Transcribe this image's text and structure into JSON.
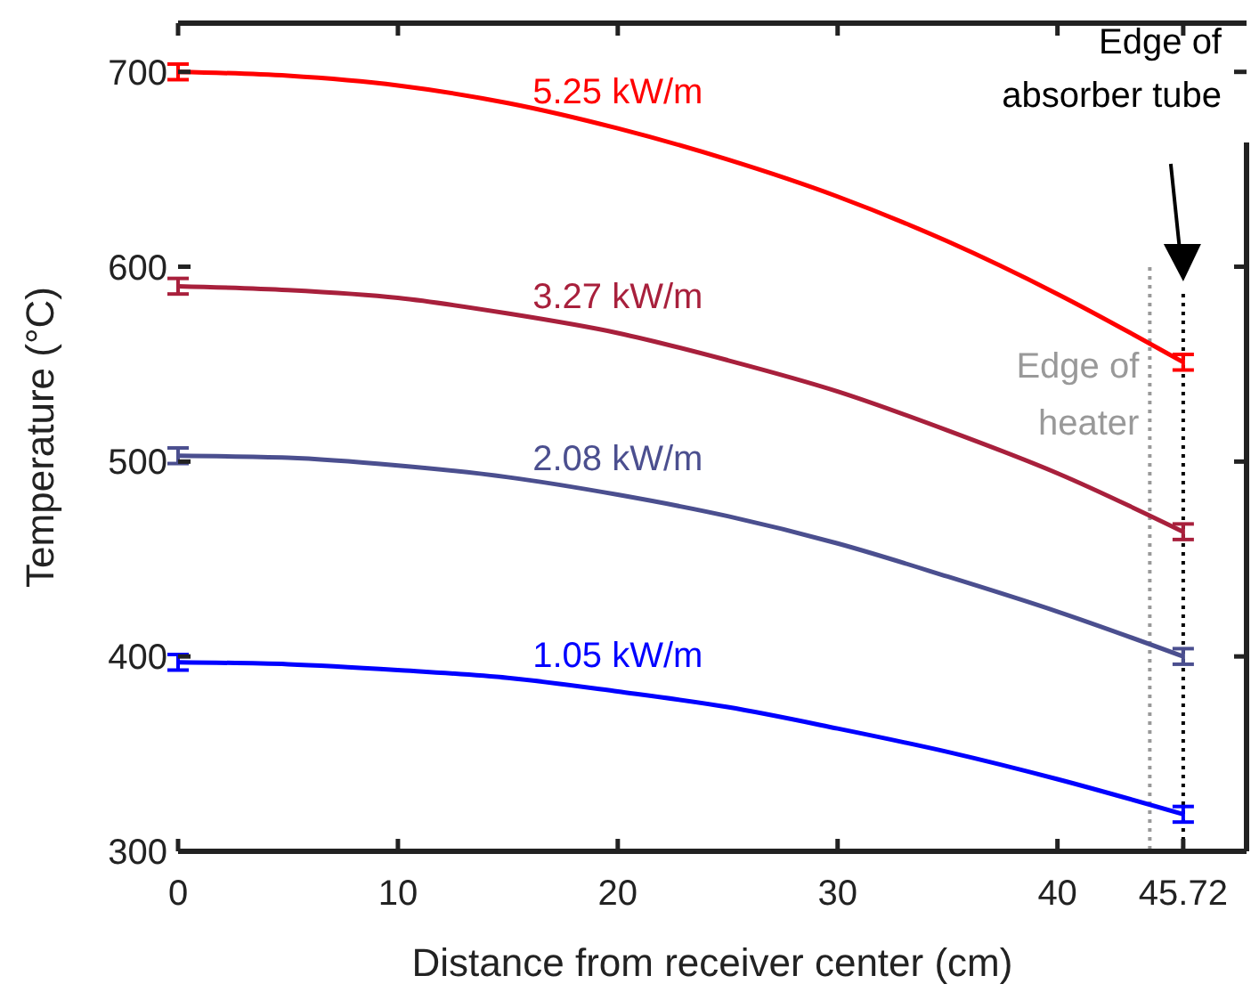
{
  "chart_data": {
    "type": "line",
    "xlabel": "Distance from receiver center (cm)",
    "ylabel": "Temperature (°C)",
    "x": [
      0,
      5,
      10,
      15,
      20,
      25,
      30,
      35,
      40,
      45.72
    ],
    "series": [
      {
        "name": "5.25 kW/m",
        "color": "#ff0000",
        "values": [
          700,
          698,
          693,
          684,
          671,
          655,
          636,
          613,
          586,
          551
        ],
        "errors": [
          4,
          null,
          null,
          null,
          null,
          null,
          null,
          null,
          null,
          4
        ]
      },
      {
        "name": "3.27 kW/m",
        "color": "#a8203c",
        "values": [
          590,
          588,
          584,
          576,
          566,
          552,
          536,
          516,
          494,
          464
        ],
        "errors": [
          4,
          null,
          null,
          null,
          null,
          null,
          null,
          null,
          null,
          4
        ]
      },
      {
        "name": "2.08 kW/m",
        "color": "#4b4f8f",
        "values": [
          503,
          502,
          498,
          492,
          483,
          472,
          458,
          441,
          423,
          400
        ],
        "errors": [
          4,
          null,
          null,
          null,
          null,
          null,
          null,
          null,
          null,
          4
        ]
      },
      {
        "name": "1.05 kW/m",
        "color": "#0000ff",
        "values": [
          397,
          396,
          393,
          389,
          382,
          374,
          363,
          351,
          337,
          319
        ],
        "errors": [
          4,
          null,
          null,
          null,
          null,
          null,
          null,
          null,
          null,
          4
        ]
      }
    ],
    "xlim": [
      0,
      48.6
    ],
    "ylim": [
      300,
      725
    ],
    "xticks": [
      0,
      10,
      20,
      30,
      40,
      45.72
    ],
    "yticks": [
      300,
      400,
      500,
      600,
      700
    ],
    "ref_lines": [
      {
        "axis": "x",
        "value": 44.2,
        "label": "Edge of heater",
        "color": "#999999",
        "line_style": "dotted"
      },
      {
        "axis": "x",
        "value": 45.72,
        "label": "Edge of absorber tube",
        "color": "#000000",
        "line_style": "dotted"
      }
    ],
    "grid": false,
    "marker": "none",
    "line_style": "solid"
  }
}
